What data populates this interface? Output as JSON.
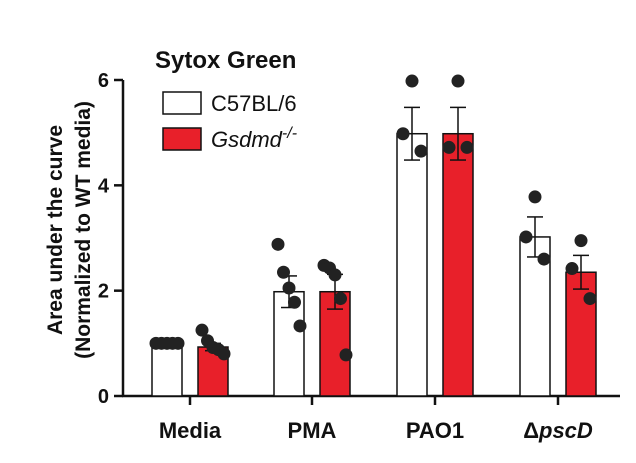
{
  "chart_data": {
    "type": "bar",
    "title": "Sytox Green",
    "ylabel_line1": "Area under the curve",
    "ylabel_line2": "(Normalized to WT media)",
    "ylim": [
      0,
      6
    ],
    "yticks": [
      0,
      2,
      4,
      6
    ],
    "categories": [
      {
        "prefix": "",
        "name": "Media",
        "italic_part": ""
      },
      {
        "prefix": "",
        "name": "PMA",
        "italic_part": ""
      },
      {
        "prefix": "",
        "name": "PAO1",
        "italic_part": ""
      },
      {
        "prefix": "Δ",
        "name": "",
        "italic_part": "pscD"
      }
    ],
    "legend": {
      "position": "top-left",
      "entries": [
        {
          "label": "C57BL/6",
          "italic": false,
          "superscript": "",
          "color": "#ffffff"
        },
        {
          "label": "Gsdmd",
          "italic": true,
          "superscript": "-/-",
          "color": "#e8202a"
        }
      ]
    },
    "series": [
      {
        "name": "C57BL/6",
        "color": "#ffffff",
        "values": [
          1.0,
          1.98,
          4.98,
          3.02
        ],
        "errors": [
          0.0,
          0.3,
          0.5,
          0.38
        ],
        "points": [
          [
            1.0,
            1.0,
            1.0,
            1.0,
            1.0
          ],
          [
            2.88,
            2.35,
            2.05,
            1.78,
            1.33
          ],
          [
            5.98,
            4.98,
            4.65
          ],
          [
            3.78,
            3.02,
            2.6
          ]
        ]
      },
      {
        "name": "Gsdmd-/-",
        "color": "#e8202a",
        "values": [
          0.93,
          1.98,
          4.98,
          2.35
        ],
        "errors": [
          0.07,
          0.33,
          0.5,
          0.32
        ],
        "points": [
          [
            1.25,
            1.05,
            0.92,
            0.88,
            0.8
          ],
          [
            2.48,
            2.43,
            2.3,
            1.85,
            0.78
          ],
          [
            5.98,
            4.72,
            4.72
          ],
          [
            2.95,
            2.42,
            1.85
          ]
        ]
      }
    ],
    "axis_color": "#111111",
    "point_color": "#222222"
  }
}
